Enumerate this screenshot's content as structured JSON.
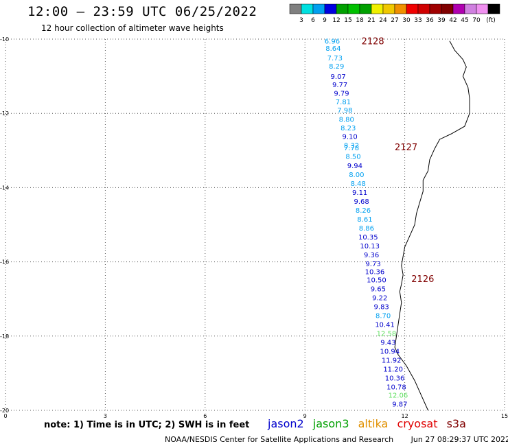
{
  "header": {
    "title": "12:00 – 23:59 UTC 06/25/2022",
    "subtitle": "12 hour collection of altimeter wave heights"
  },
  "legend": {
    "unit": "(ft)",
    "colors": [
      "#808080",
      "#00e0e0",
      "#00a0f0",
      "#0000e0",
      "#00a000",
      "#00c000",
      "#00a000",
      "#f0f000",
      "#f0c800",
      "#f09000",
      "#f00000",
      "#d00000",
      "#a00000",
      "#800000",
      "#b000b0",
      "#d080e0",
      "#f090f0",
      "#000000"
    ],
    "labels": [
      "3",
      "6",
      "9",
      "12",
      "15",
      "18",
      "21",
      "24",
      "27",
      "30",
      "33",
      "36",
      "39",
      "42",
      "45",
      "70"
    ]
  },
  "note": "note: 1) Time is in UTC; 2) SWH is in feet",
  "satellites": [
    {
      "name": "jason2",
      "color": "#0000cc"
    },
    {
      "name": "jason3",
      "color": "#00a000"
    },
    {
      "name": "altika",
      "color": "#e09000"
    },
    {
      "name": "cryosat",
      "color": "#e00000"
    },
    {
      "name": "s3a",
      "color": "#800000"
    }
  ],
  "footer": {
    "org": "NOAA/NESDIS Center for Satellite Applications and Research",
    "timestamp": "Jun 27 08:29:37 UTC 2022"
  },
  "chart_data": {
    "type": "scatter",
    "x_ticks": [
      "0",
      "3",
      "6",
      "9",
      "12",
      "15"
    ],
    "y_ticks": [
      "-10",
      "-12",
      "-14",
      "-16",
      "-18",
      "-20"
    ],
    "xlim": [
      0,
      15
    ],
    "ylim": [
      -20,
      -10
    ],
    "grid": true,
    "track_labels": [
      {
        "text": "2128",
        "x": 10.7,
        "y": -10.05,
        "color": "#800000"
      },
      {
        "text": "2127",
        "x": 11.7,
        "y": -12.9,
        "color": "#800000"
      },
      {
        "text": "2126",
        "x": 12.2,
        "y": -16.45,
        "color": "#800000"
      }
    ],
    "points": [
      {
        "x": 9.82,
        "y": -10.05,
        "v": "6.96",
        "c": "#00a0f0"
      },
      {
        "x": 9.85,
        "y": -10.24,
        "v": "8.64",
        "c": "#00a0f0"
      },
      {
        "x": 9.9,
        "y": -10.5,
        "v": "7.73",
        "c": "#00a0f0"
      },
      {
        "x": 9.95,
        "y": -10.72,
        "v": "8.29",
        "c": "#00a0f0"
      },
      {
        "x": 10.0,
        "y": -11.0,
        "v": "9.07",
        "c": "#0000cc"
      },
      {
        "x": 10.05,
        "y": -11.22,
        "v": "9.77",
        "c": "#0000cc"
      },
      {
        "x": 10.1,
        "y": -11.45,
        "v": "9.79",
        "c": "#0000cc"
      },
      {
        "x": 10.15,
        "y": -11.68,
        "v": "7.81",
        "c": "#00a0f0"
      },
      {
        "x": 10.2,
        "y": -11.9,
        "v": "7.98",
        "c": "#00a0f0"
      },
      {
        "x": 10.25,
        "y": -12.15,
        "v": "8.80",
        "c": "#00a0f0"
      },
      {
        "x": 10.3,
        "y": -12.38,
        "v": "8.23",
        "c": "#00a0f0"
      },
      {
        "x": 10.35,
        "y": -12.62,
        "v": "9.10",
        "c": "#0000cc"
      },
      {
        "x": 10.4,
        "y": -12.86,
        "v": "8.32",
        "c": "#00a0f0"
      },
      {
        "x": 10.4,
        "y": -12.92,
        "v": "7.78",
        "c": "#00a0f0"
      },
      {
        "x": 10.45,
        "y": -13.15,
        "v": "8.50",
        "c": "#00a0f0"
      },
      {
        "x": 10.5,
        "y": -13.4,
        "v": "9.94",
        "c": "#0000cc"
      },
      {
        "x": 10.55,
        "y": -13.64,
        "v": "8.00",
        "c": "#00a0f0"
      },
      {
        "x": 10.6,
        "y": -13.88,
        "v": "8.48",
        "c": "#00a0f0"
      },
      {
        "x": 10.65,
        "y": -14.12,
        "v": "9.11",
        "c": "#0000cc"
      },
      {
        "x": 10.7,
        "y": -14.36,
        "v": "9.68",
        "c": "#0000cc"
      },
      {
        "x": 10.75,
        "y": -14.6,
        "v": "8.26",
        "c": "#00a0f0"
      },
      {
        "x": 10.8,
        "y": -14.84,
        "v": "8.61",
        "c": "#00a0f0"
      },
      {
        "x": 10.85,
        "y": -15.08,
        "v": "8.86",
        "c": "#00a0f0"
      },
      {
        "x": 10.9,
        "y": -15.32,
        "v": "10.35",
        "c": "#0000cc"
      },
      {
        "x": 10.95,
        "y": -15.56,
        "v": "10.13",
        "c": "#0000cc"
      },
      {
        "x": 11.0,
        "y": -15.8,
        "v": "9.36",
        "c": "#0000cc"
      },
      {
        "x": 11.05,
        "y": -16.04,
        "v": "9.73",
        "c": "#0000cc"
      },
      {
        "x": 11.1,
        "y": -16.26,
        "v": "10.36",
        "c": "#0000cc"
      },
      {
        "x": 11.15,
        "y": -16.48,
        "v": "10.50",
        "c": "#0000cc"
      },
      {
        "x": 11.2,
        "y": -16.72,
        "v": "9.65",
        "c": "#0000cc"
      },
      {
        "x": 11.25,
        "y": -16.96,
        "v": "9.22",
        "c": "#0000cc"
      },
      {
        "x": 11.3,
        "y": -17.2,
        "v": "9.83",
        "c": "#0000cc"
      },
      {
        "x": 11.35,
        "y": -17.44,
        "v": "8.70",
        "c": "#00a0f0"
      },
      {
        "x": 11.4,
        "y": -17.68,
        "v": "10.41",
        "c": "#0000cc"
      },
      {
        "x": 11.45,
        "y": -17.92,
        "v": "12.58",
        "c": "#60e060"
      },
      {
        "x": 11.5,
        "y": -18.16,
        "v": "9.43",
        "c": "#0000cc"
      },
      {
        "x": 11.55,
        "y": -18.4,
        "v": "10.94",
        "c": "#0000cc"
      },
      {
        "x": 11.6,
        "y": -18.64,
        "v": "11.92",
        "c": "#0000cc"
      },
      {
        "x": 11.65,
        "y": -18.88,
        "v": "11.20",
        "c": "#0000cc"
      },
      {
        "x": 11.7,
        "y": -19.12,
        "v": "10.36",
        "c": "#0000cc"
      },
      {
        "x": 11.75,
        "y": -19.36,
        "v": "10.78",
        "c": "#0000cc"
      },
      {
        "x": 11.8,
        "y": -19.58,
        "v": "12.06",
        "c": "#60e060"
      },
      {
        "x": 11.85,
        "y": -19.82,
        "v": "9.87",
        "c": "#0000cc"
      }
    ],
    "coastline": [
      [
        13.35,
        -10.05
      ],
      [
        13.5,
        -10.3
      ],
      [
        13.75,
        -10.55
      ],
      [
        13.85,
        -10.75
      ],
      [
        13.75,
        -11.0
      ],
      [
        13.9,
        -11.3
      ],
      [
        13.95,
        -11.6
      ],
      [
        13.95,
        -12.0
      ],
      [
        13.8,
        -12.35
      ],
      [
        13.4,
        -12.55
      ],
      [
        13.05,
        -12.7
      ],
      [
        12.9,
        -12.95
      ],
      [
        12.75,
        -13.25
      ],
      [
        12.7,
        -13.55
      ],
      [
        12.55,
        -13.8
      ],
      [
        12.55,
        -14.1
      ],
      [
        12.45,
        -14.4
      ],
      [
        12.35,
        -14.7
      ],
      [
        12.3,
        -15.0
      ],
      [
        12.15,
        -15.3
      ],
      [
        12.0,
        -15.6
      ],
      [
        11.95,
        -15.85
      ],
      [
        11.9,
        -16.1
      ],
      [
        11.95,
        -16.35
      ],
      [
        11.9,
        -16.6
      ],
      [
        11.85,
        -16.8
      ],
      [
        11.9,
        -17.1
      ],
      [
        11.85,
        -17.4
      ],
      [
        11.8,
        -17.7
      ],
      [
        11.75,
        -18.0
      ],
      [
        11.7,
        -18.3
      ],
      [
        11.8,
        -18.5
      ],
      [
        12.05,
        -18.8
      ],
      [
        12.3,
        -19.2
      ],
      [
        12.5,
        -19.6
      ],
      [
        12.7,
        -20.0
      ]
    ]
  }
}
